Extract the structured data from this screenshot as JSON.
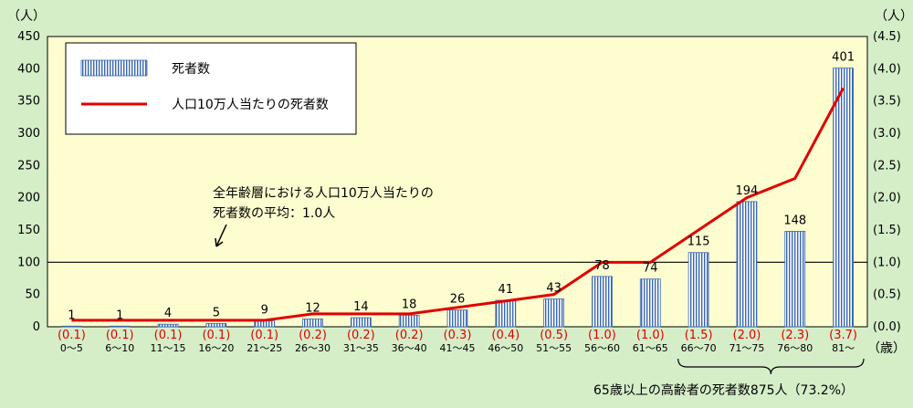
{
  "chart_data": {
    "type": "bar",
    "categories": [
      "0〜5",
      "6〜10",
      "11〜15",
      "16〜20",
      "21〜25",
      "26〜30",
      "31〜35",
      "36〜40",
      "41〜45",
      "46〜50",
      "51〜55",
      "56〜60",
      "61〜65",
      "66〜70",
      "71〜75",
      "76〜80",
      "81〜"
    ],
    "series": [
      {
        "name": "死者数",
        "type": "bar",
        "axis": "left",
        "values": [
          1,
          1,
          4,
          5,
          9,
          12,
          14,
          18,
          26,
          41,
          43,
          78,
          74,
          115,
          194,
          148,
          401
        ]
      },
      {
        "name": "人口10万人当たりの死者数",
        "type": "line",
        "axis": "right",
        "color": "#e00000",
        "values": [
          0.1,
          0.1,
          0.1,
          0.1,
          0.1,
          0.2,
          0.2,
          0.2,
          0.3,
          0.4,
          0.5,
          1.0,
          1.0,
          1.5,
          2.0,
          2.3,
          3.7
        ],
        "labels": [
          "(0.1)",
          "(0.1)",
          "(0.1)",
          "(0.1)",
          "(0.1)",
          "(0.2)",
          "(0.2)",
          "(0.2)",
          "(0.3)",
          "(0.4)",
          "(0.5)",
          "(1.0)",
          "(1.0)",
          "(1.5)",
          "(2.0)",
          "(2.3)",
          "(3.7)"
        ]
      }
    ],
    "y_left": {
      "unit": "（人）",
      "ticks": [
        "0",
        "50",
        "100",
        "150",
        "200",
        "250",
        "300",
        "350",
        "400",
        "450"
      ],
      "range": [
        0,
        450
      ]
    },
    "y_right": {
      "unit": "（人）",
      "ticks": [
        "(0.0)",
        "(0.5)",
        "(1.0)",
        "(1.5)",
        "(2.0)",
        "(2.5)",
        "(3.0)",
        "(3.5)",
        "(4.0)",
        "(4.5)"
      ],
      "range": [
        0,
        4.5
      ]
    },
    "x_unit": "（歳）",
    "reference_line": {
      "value": 1.0,
      "axis": "right"
    },
    "annotation_lines": [
      "全年齢層における人口10万人当たりの",
      "死者数の平均：1.0人"
    ],
    "elderly_note": "65歳以上の高齢者の死者数875人（73.2%）",
    "legend_placement": "top-left",
    "colors": {
      "bar_stripe": "#3a67b0",
      "line": "#e00000",
      "plot_bg": "#fefdd0",
      "page_bg": "#d5eec8"
    }
  }
}
